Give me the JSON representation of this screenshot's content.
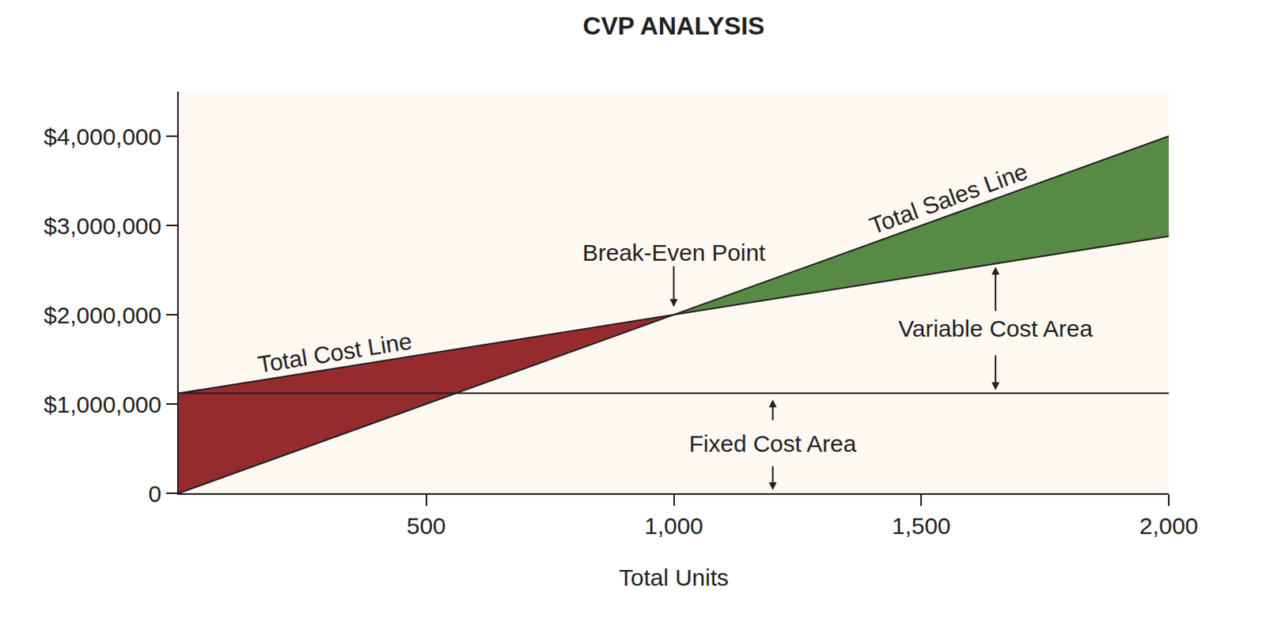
{
  "chart_data": {
    "type": "line",
    "title": "CVP ANALYSIS",
    "x_label": "Total Units",
    "x": [
      0,
      1000,
      2000
    ],
    "series": [
      {
        "name": "Total Sales Line",
        "color": "#231f20",
        "values": [
          0,
          2000000,
          4000000
        ]
      },
      {
        "name": "Total Cost Line",
        "color": "#231f20",
        "values": [
          1120000,
          2000000,
          2880000
        ]
      },
      {
        "color": "#231f20",
        "values": [
          1120000,
          1120000,
          1120000
        ]
      }
    ],
    "colors": [
      "#962b2e",
      "#578a45"
    ],
    "annotations": [
      "Break-Even Point",
      "Variable Cost Area",
      "Fixed Cost Area"
    ],
    "xlim": [
      0,
      2000
    ],
    "xticks": [
      500,
      {
        "value": 1000,
        "label": "1,000"
      },
      {
        "value": 1500,
        "label": "1,500"
      },
      {
        "value": 2000,
        "label": "2,000"
      }
    ],
    "ylim": [
      0,
      4500000
    ],
    "yticks": [
      0,
      {
        "value": 1000000,
        "label": "$1,000,000"
      },
      {
        "value": 2000000,
        "label": "$2,000,000"
      },
      {
        "value": 3000000,
        "label": "$3,000,000"
      },
      {
        "value": 4000000,
        "label": "$4,000,000"
      }
    ],
    "grid": false
  }
}
